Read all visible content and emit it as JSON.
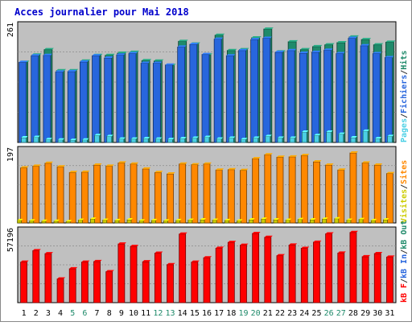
{
  "chart_data": {
    "title": "Acces journalier pour Mai 2018",
    "type": "bar",
    "categories": [
      "1",
      "2",
      "3",
      "4",
      "5",
      "6",
      "7",
      "8",
      "9",
      "10",
      "11",
      "12",
      "13",
      "14",
      "15",
      "16",
      "17",
      "18",
      "19",
      "20",
      "21",
      "22",
      "23",
      "24",
      "25",
      "26",
      "27",
      "28",
      "29",
      "30",
      "31"
    ],
    "weekend_days": [
      "5",
      "6",
      "12",
      "13",
      "19",
      "20",
      "26",
      "27"
    ],
    "panels": [
      {
        "name": "visits",
        "ymax_label": "261",
        "ymax": 261,
        "legend": [
          {
            "text": "Pages",
            "color": "#4bd0e5"
          },
          {
            "text": "/",
            "color": "#333333"
          },
          {
            "text": "Fichiers",
            "color": "#2866dd"
          },
          {
            "text": "/",
            "color": "#333333"
          },
          {
            "text": "Hits",
            "color": "#1f8a6a"
          }
        ],
        "series": [
          {
            "name": "Hits",
            "color": "#1f8a6a",
            "values": [
              183,
              200,
              212,
              164,
              164,
              186,
              199,
              199,
              204,
              206,
              187,
              186,
              176,
              231,
              225,
              200,
              245,
              210,
              212,
              239,
              259,
              207,
              230,
              212,
              219,
              223,
              228,
              241,
              235,
              223,
              229
            ]
          },
          {
            "name": "Fichiers",
            "color": "#2866dd",
            "values": [
              183,
              198,
              199,
              161,
              162,
              184,
              198,
              193,
              200,
              203,
              181,
              181,
              177,
              218,
              224,
              201,
              236,
              198,
              210,
              235,
              238,
              206,
              210,
              204,
              206,
              211,
              203,
              238,
              221,
              203,
              194
            ]
          },
          {
            "name": "Pages",
            "color": "#4bd0e5",
            "values": [
              11,
              12,
              7,
              6,
              5,
              6,
              16,
              14,
              8,
              8,
              9,
              8,
              7,
              9,
              10,
              12,
              8,
              10,
              7,
              10,
              14,
              10,
              10,
              24,
              16,
              24,
              19,
              11,
              26,
              9,
              14
            ]
          }
        ]
      },
      {
        "name": "visitors",
        "ymax_label": "197",
        "ymax": 197,
        "legend": [
          {
            "text": "Visites",
            "color": "#cccc00"
          },
          {
            "text": "/",
            "color": "#333333"
          },
          {
            "text": "Sites",
            "color": "#ff8800"
          }
        ],
        "series": [
          {
            "name": "Sites",
            "color": "#ff8800",
            "values": [
              155,
              160,
              168,
              158,
              142,
              143,
              163,
              160,
              169,
              166,
              152,
              142,
              138,
              166,
              164,
              166,
              149,
              150,
              148,
              181,
              192,
              185,
              186,
              190,
              172,
              163,
              149,
              197,
              169,
              163,
              139
            ]
          },
          {
            "name": "Visites",
            "color": "#cccc00",
            "values": [
              7,
              6,
              5,
              5,
              4,
              8,
              11,
              8,
              7,
              9,
              6,
              7,
              6,
              7,
              8,
              9,
              8,
              7,
              6,
              9,
              11,
              9,
              8,
              10,
              9,
              11,
              12,
              8,
              10,
              7,
              9
            ]
          }
        ]
      },
      {
        "name": "bandwidth",
        "ymax_label": "57196",
        "ymax": 57196,
        "legend": [
          {
            "text": "kB F",
            "color": "#ff0000"
          },
          {
            "text": "/",
            "color": "#333333"
          },
          {
            "text": "kB In",
            "color": "#2866dd"
          },
          {
            "text": "/",
            "color": "#333333"
          },
          {
            "text": "kB Out",
            "color": "#1f8a6a"
          }
        ],
        "series": [
          {
            "name": "kB F",
            "color": "#ff0000",
            "values": [
              33500,
              43000,
              40500,
              19600,
              28000,
              33500,
              34000,
              25600,
              48500,
              46500,
              33800,
              40900,
              31400,
              56700,
              33500,
              37100,
              45000,
              49800,
              47500,
              57200,
              54000,
              38800,
              47600,
              44900,
              50000,
              56900,
              41000,
              58000,
              38000,
              40600,
              37700
            ]
          }
        ]
      }
    ]
  }
}
